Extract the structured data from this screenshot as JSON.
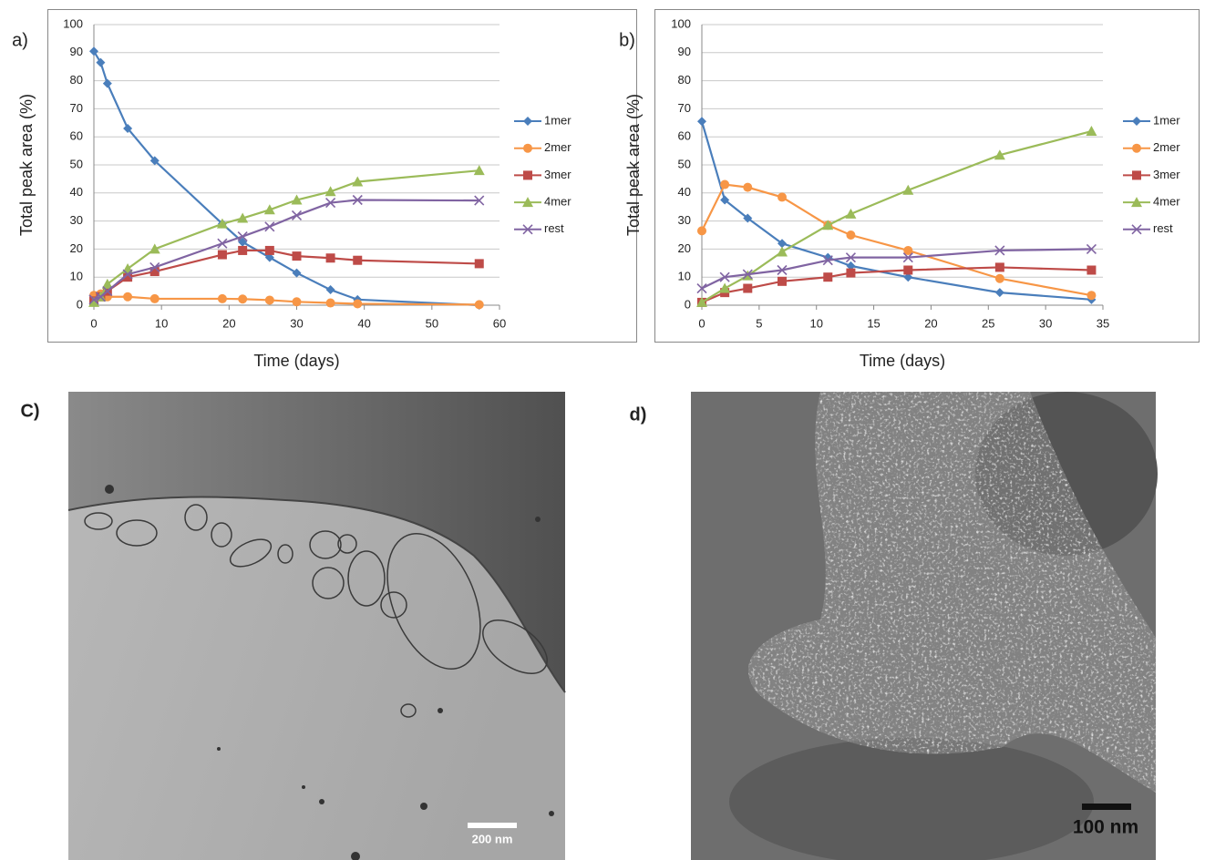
{
  "chart_data": [
    {
      "type": "line",
      "panel_label": "a)",
      "x_label": "Time (days)",
      "y_label": "Total peak area (%)",
      "x": [
        0,
        1,
        2,
        5,
        9,
        19,
        22,
        26,
        30,
        35,
        39,
        57
      ],
      "xlim": [
        0,
        60
      ],
      "xticks": [
        0,
        10,
        20,
        30,
        40,
        50,
        60
      ],
      "ylim": [
        0,
        100
      ],
      "yticks": [
        0,
        10,
        20,
        30,
        40,
        50,
        60,
        70,
        80,
        90,
        100
      ],
      "grid": true,
      "legend": "right",
      "series": [
        {
          "name": "1mer",
          "color": "#4a7ebb",
          "marker": "diamond",
          "values": [
            90.5,
            86.5,
            79,
            63,
            51.5,
            29,
            22.5,
            17,
            11.5,
            5.5,
            2,
            0
          ]
        },
        {
          "name": "2mer",
          "color": "#f79646",
          "marker": "circle",
          "values": [
            3.5,
            4,
            3,
            3,
            2.3,
            2.3,
            2.2,
            1.8,
            1.2,
            0.8,
            0.5,
            0.2
          ]
        },
        {
          "name": "3mer",
          "color": "#be4b48",
          "marker": "square",
          "values": [
            1.5,
            3,
            5,
            10,
            12,
            18,
            19.5,
            19.5,
            17.5,
            16.8,
            16,
            14.8
          ]
        },
        {
          "name": "4mer",
          "color": "#9bbb59",
          "marker": "triangle",
          "values": [
            1,
            3,
            7.5,
            13,
            20,
            29,
            31,
            34,
            37.5,
            40.5,
            44,
            48
          ]
        },
        {
          "name": "rest",
          "color": "#8064a2",
          "marker": "x",
          "values": [
            2,
            3,
            5,
            11,
            13.5,
            22,
            24.5,
            28,
            32,
            36.5,
            37.5,
            37.3
          ]
        }
      ]
    },
    {
      "type": "line",
      "panel_label": "b)",
      "x_label": "Time (days)",
      "y_label": "Total peak area (%)",
      "x": [
        0,
        2,
        4,
        7,
        11,
        13,
        18,
        26,
        34
      ],
      "xlim": [
        0,
        35
      ],
      "xticks": [
        0,
        5,
        10,
        15,
        20,
        25,
        30,
        35
      ],
      "ylim": [
        0,
        100
      ],
      "yticks": [
        0,
        10,
        20,
        30,
        40,
        50,
        60,
        70,
        80,
        90,
        100
      ],
      "grid": true,
      "legend": "right",
      "series": [
        {
          "name": "1mer",
          "color": "#4a7ebb",
          "marker": "diamond",
          "values": [
            65.5,
            37.5,
            31,
            22,
            17,
            14,
            10,
            4.5,
            2
          ]
        },
        {
          "name": "2mer",
          "color": "#f79646",
          "marker": "circle",
          "values": [
            26.5,
            43,
            42,
            38.5,
            28.5,
            25,
            19.5,
            9.5,
            3.5
          ]
        },
        {
          "name": "3mer",
          "color": "#be4b48",
          "marker": "square",
          "values": [
            1,
            4.5,
            6,
            8.5,
            10,
            11.5,
            12.5,
            13.5,
            12.5
          ]
        },
        {
          "name": "4mer",
          "color": "#9bbb59",
          "marker": "triangle",
          "values": [
            1,
            6,
            10.5,
            19,
            28.5,
            32.5,
            41,
            53.5,
            62
          ]
        },
        {
          "name": "rest",
          "color": "#8064a2",
          "marker": "x",
          "values": [
            6,
            10,
            11,
            12.5,
            16,
            17,
            17,
            19.5,
            20
          ]
        }
      ]
    }
  ],
  "images": [
    {
      "panel_label": "C)",
      "scale_bar": "200 nm"
    },
    {
      "panel_label": "d)",
      "scale_bar": "100 nm"
    }
  ]
}
